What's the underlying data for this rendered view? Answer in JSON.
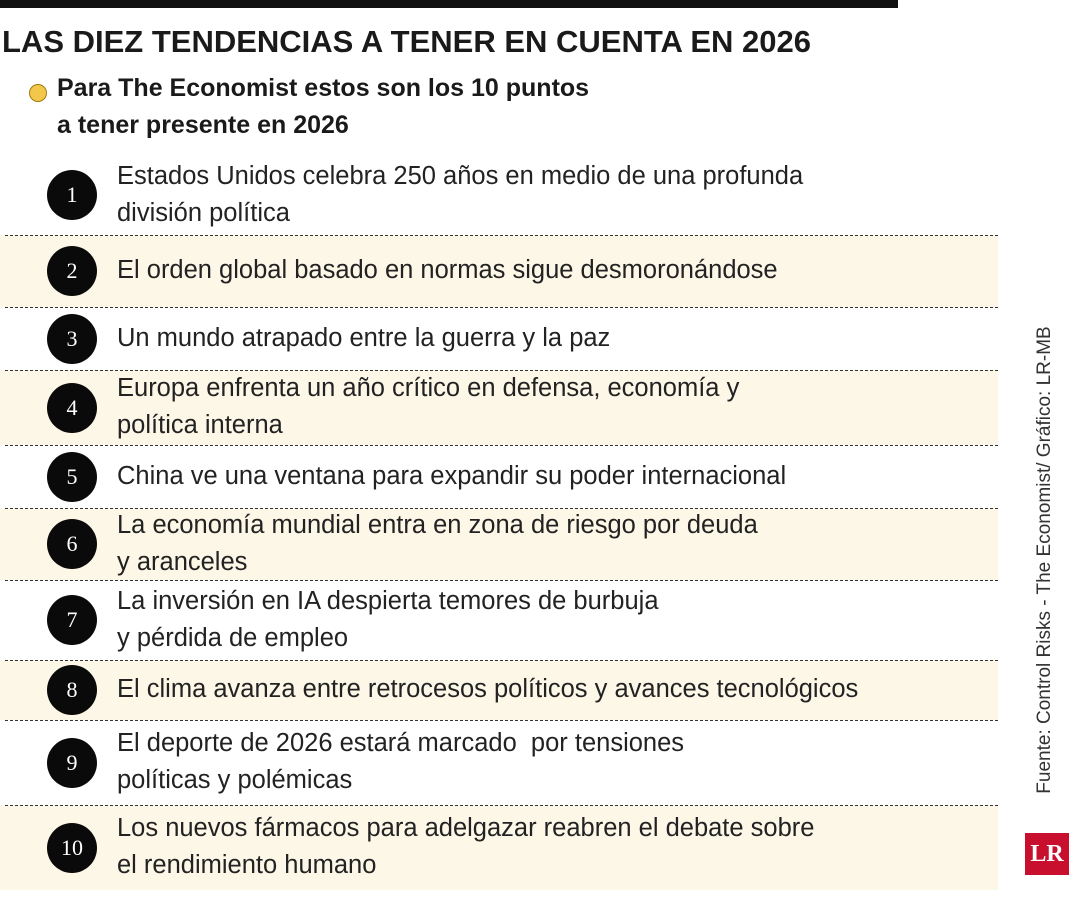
{
  "header": {
    "title": "LAS DIEZ TENDENCIAS A TENER EN CUENTA EN 2026",
    "subtitle": [
      "Para The Economist estos son los 10 puntos",
      "a tener presente en 2026"
    ]
  },
  "items": [
    {
      "number": "1",
      "lines": [
        "Estados Unidos celebra 250 años en medio de una profunda",
        "división política"
      ]
    },
    {
      "number": "2",
      "lines": [
        "El orden global basado en normas sigue desmoronándose"
      ]
    },
    {
      "number": "3",
      "lines": [
        "Un mundo atrapado entre la guerra y la paz"
      ]
    },
    {
      "number": "4",
      "lines": [
        "Europa enfrenta un año crítico en defensa, economía y",
        "política interna"
      ]
    },
    {
      "number": "5",
      "lines": [
        "China ve una ventana para expandir su poder internacional"
      ]
    },
    {
      "number": "6",
      "lines": [
        "La economía mundial entra en zona de riesgo por deuda",
        "y aranceles"
      ]
    },
    {
      "number": "7",
      "lines": [
        "La inversión en IA despierta temores de burbuja",
        "y pérdida de empleo"
      ]
    },
    {
      "number": "8",
      "lines": [
        "El clima avanza entre retrocesos políticos y avances tecnológicos"
      ]
    },
    {
      "number": "9",
      "lines": [
        "El deporte de 2026 estará marcado  por tensiones",
        "políticas y polémicas"
      ]
    },
    {
      "number": "10",
      "lines": [
        "Los nuevos fármacos para adelgazar reabren el debate sobre",
        "el rendimiento humano"
      ]
    }
  ],
  "source": "Fuente: Control Risks - The Economist/ Gráfico: LR-MB",
  "logo": "LR"
}
